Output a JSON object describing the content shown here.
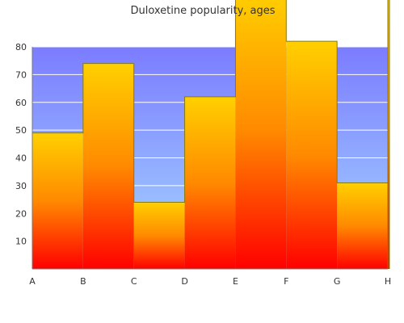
{
  "chart_data": {
    "type": "area",
    "title": "Duloxetine popularity, ages",
    "categories": [
      "A",
      "B",
      "C",
      "D",
      "E",
      "F",
      "G",
      "H"
    ],
    "values": [
      49,
      74,
      24,
      62,
      100,
      82,
      31,
      100
    ],
    "ylim": [
      0,
      80
    ],
    "yticks": [
      10,
      20,
      30,
      40,
      50,
      60,
      70,
      80
    ],
    "grid": true,
    "background_gradient": {
      "top": "#7b7cff",
      "bottom": "#a6d8ff"
    },
    "fill_gradient": {
      "top": "#ffd000",
      "middle": "#ff8a00",
      "bottom": "#ff0000"
    },
    "stroke": "#8a7a00"
  }
}
